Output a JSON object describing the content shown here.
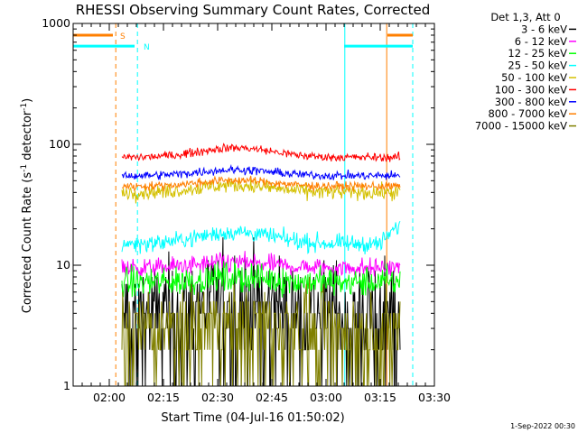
{
  "chart_data": {
    "type": "line",
    "title": "RHESSI Observing Summary Count Rates, Corrected",
    "xlabel": "Start Time (04-Jul-16 01:50:02)",
    "ylabel_main": "Corrected Count Rate (s",
    "ylabel_sup1": "-1",
    "ylabel_mid": " detector",
    "ylabel_sup2": "-1",
    "ylabel_end": ")",
    "x_unit": "minutes since 01:50:02",
    "x_range": [
      0,
      100
    ],
    "x_ticks": [
      {
        "value": 10,
        "label": "02:00"
      },
      {
        "value": 25,
        "label": "02:15"
      },
      {
        "value": 40,
        "label": "02:30"
      },
      {
        "value": 55,
        "label": "02:45"
      },
      {
        "value": 70,
        "label": "03:00"
      },
      {
        "value": 85,
        "label": "03:15"
      },
      {
        "value": 100,
        "label": "03:30"
      }
    ],
    "y_scale": "log",
    "y_range": [
      1,
      1000
    ],
    "y_ticks": [
      {
        "value": 1,
        "label": "1"
      },
      {
        "value": 10,
        "label": "10"
      },
      {
        "value": 100,
        "label": "100"
      },
      {
        "value": 1000,
        "label": "1000"
      }
    ],
    "legend_title": "Det 1,3, Att 0",
    "legend_position": "top-right, outside plot",
    "series": [
      {
        "name": "3 - 6 keV",
        "color": "#000000",
        "base": 4,
        "amp": 0.3,
        "noise": 0.5,
        "sparse": true
      },
      {
        "name": "6 - 12 keV",
        "color": "#ff00ff",
        "base": 9.5,
        "amp": 0.1,
        "noise": 0.09
      },
      {
        "name": "12 - 25 keV",
        "color": "#00ff00",
        "base": 7.2,
        "amp": 0.1,
        "noise": 0.14
      },
      {
        "name": "25 - 50 keV",
        "color": "#00ffff",
        "base": 15,
        "amp": 0.25,
        "noise": 0.08
      },
      {
        "name": "50 - 100 keV",
        "color": "#d4c000",
        "base": 40,
        "amp": 0.15,
        "noise": 0.07
      },
      {
        "name": "100 - 300 keV",
        "color": "#ff0000",
        "base": 78,
        "amp": 0.2,
        "noise": 0.04
      },
      {
        "name": "300 - 800 keV",
        "color": "#0000ff",
        "base": 55,
        "amp": 0.12,
        "noise": 0.04
      },
      {
        "name": "800 - 7000 keV",
        "color": "#ff7f00",
        "base": 45,
        "amp": 0.12,
        "noise": 0.04
      },
      {
        "name": "7000 - 15000 keV",
        "color": "#808000",
        "base": 3,
        "amp": 0.2,
        "noise": 0.35,
        "sparse": true
      }
    ],
    "data_x_range": [
      13.5,
      90.5
    ],
    "saa_segments": [
      {
        "label": "S",
        "color": "#ff7f00",
        "x_start": 0,
        "x_end": 11,
        "y": 800
      },
      {
        "label": "S",
        "color": "#ff7f00",
        "x_start": 87,
        "x_end": 94,
        "y": 800
      },
      {
        "label": "N",
        "color": "#00ffff",
        "x_start": 0,
        "x_end": 17,
        "y": 650
      },
      {
        "label": "N",
        "color": "#00ffff",
        "x_start": 75,
        "x_end": 94,
        "y": 650
      }
    ],
    "vertical_markers": [
      {
        "x": 0,
        "color": "#00ffff",
        "style": "solid"
      },
      {
        "x": 11.8,
        "color": "#ff7f00",
        "style": "dashed"
      },
      {
        "x": 17.8,
        "color": "#00ffff",
        "style": "dashed"
      },
      {
        "x": 75.2,
        "color": "#00ffff",
        "style": "solid"
      },
      {
        "x": 86.8,
        "color": "#ff7f00",
        "style": "solid"
      },
      {
        "x": 94,
        "color": "#00ffff",
        "style": "dashed"
      }
    ],
    "grid": false
  },
  "footer": {
    "timestamp": "1-Sep-2022 00:30"
  }
}
